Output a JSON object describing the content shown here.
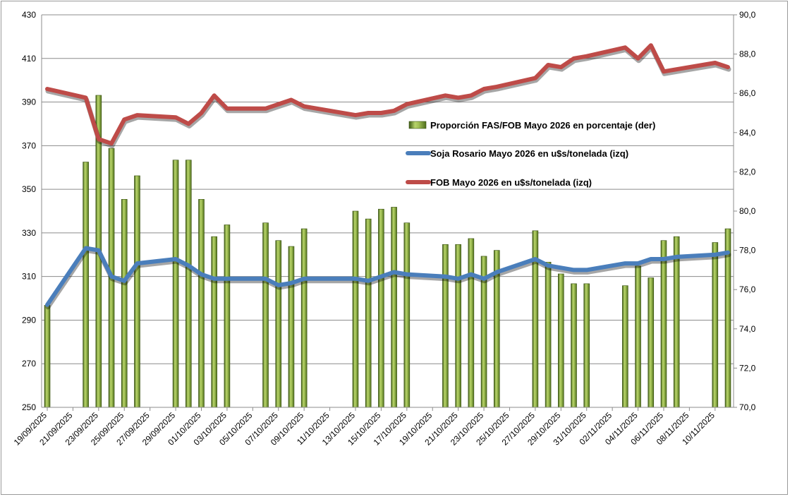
{
  "chart_data": {
    "type": "bar+line",
    "title": "",
    "xlabel": "",
    "ylabel_left": "",
    "ylabel_right": "",
    "y_left": {
      "min": 250,
      "max": 430,
      "ticks": [
        "250",
        "270",
        "290",
        "310",
        "330",
        "350",
        "370",
        "390",
        "410",
        "430"
      ]
    },
    "y_right": {
      "min": 70,
      "max": 90,
      "ticks": [
        "70,0",
        "72,0",
        "74,0",
        "76,0",
        "78,0",
        "80,0",
        "82,0",
        "84,0",
        "86,0",
        "88,0",
        "90,0"
      ]
    },
    "grid": "horizontal",
    "legend_position": "middle-right",
    "x_start": "2025-09-19",
    "x_end": "2025-11-11",
    "x_tick_labels": [
      "19/09/2025",
      "21/09/2025",
      "23/09/2025",
      "25/09/2025",
      "27/09/2025",
      "29/09/2025",
      "01/10/2025",
      "03/10/2025",
      "05/10/2025",
      "07/10/2025",
      "09/10/2025",
      "11/10/2025",
      "13/10/2025",
      "15/10/2025",
      "17/10/2025",
      "19/10/2025",
      "21/10/2025",
      "23/10/2025",
      "25/10/2025",
      "27/10/2025",
      "29/10/2025",
      "31/10/2025",
      "02/11/2025",
      "04/11/2025",
      "06/11/2025",
      "08/11/2025",
      "10/11/2025"
    ],
    "series": [
      {
        "name": "Proporción FAS/FOB Mayo 2026 en porcentaje (der)",
        "type": "bar",
        "axis": "right",
        "color": "#8fac3a",
        "x": [
          "2025-09-19",
          "2025-09-22",
          "2025-09-23",
          "2025-09-24",
          "2025-09-25",
          "2025-09-26",
          "2025-09-29",
          "2025-09-30",
          "2025-10-01",
          "2025-10-02",
          "2025-10-03",
          "2025-10-06",
          "2025-10-07",
          "2025-10-08",
          "2025-10-09",
          "2025-10-13",
          "2025-10-14",
          "2025-10-15",
          "2025-10-16",
          "2025-10-17",
          "2025-10-20",
          "2025-10-21",
          "2025-10-22",
          "2025-10-23",
          "2025-10-24",
          "2025-10-27",
          "2025-10-28",
          "2025-10-29",
          "2025-10-30",
          "2025-10-31",
          "2025-11-03",
          "2025-11-04",
          "2025-11-05",
          "2025-11-06",
          "2025-11-07",
          "2025-11-10",
          "2025-11-11"
        ],
        "values": [
          75.2,
          82.5,
          85.9,
          83.2,
          80.6,
          81.8,
          82.6,
          82.6,
          80.6,
          78.7,
          79.3,
          79.4,
          78.5,
          78.2,
          79.1,
          80.0,
          79.6,
          80.1,
          80.2,
          79.4,
          78.3,
          78.3,
          78.6,
          77.7,
          78.0,
          79.0,
          77.4,
          76.8,
          76.3,
          76.3,
          76.2,
          77.2,
          76.6,
          78.5,
          78.7,
          78.4,
          79.1
        ]
      },
      {
        "name": "Soja Rosario Mayo 2026 en u$s/tonelada (izq)",
        "type": "line",
        "axis": "left",
        "color": "#4a7ebb",
        "x": [
          "2025-09-19",
          "2025-09-22",
          "2025-09-23",
          "2025-09-24",
          "2025-09-25",
          "2025-09-26",
          "2025-09-29",
          "2025-09-30",
          "2025-10-01",
          "2025-10-02",
          "2025-10-03",
          "2025-10-06",
          "2025-10-07",
          "2025-10-08",
          "2025-10-09",
          "2025-10-13",
          "2025-10-14",
          "2025-10-15",
          "2025-10-16",
          "2025-10-17",
          "2025-10-20",
          "2025-10-21",
          "2025-10-22",
          "2025-10-23",
          "2025-10-24",
          "2025-10-27",
          "2025-10-28",
          "2025-10-29",
          "2025-10-30",
          "2025-10-31",
          "2025-11-03",
          "2025-11-04",
          "2025-11-05",
          "2025-11-06",
          "2025-11-07",
          "2025-11-10",
          "2025-11-11"
        ],
        "values": [
          297,
          323,
          322,
          310,
          308,
          316,
          318,
          315,
          311,
          309,
          309,
          309,
          306,
          307,
          309,
          309,
          308,
          310,
          312,
          311,
          310,
          309,
          311,
          309,
          312,
          318,
          315,
          314,
          313,
          313,
          316,
          316,
          318,
          318,
          319,
          320,
          321
        ]
      },
      {
        "name": "FOB Mayo 2026 en u$s/tonelada (izq)",
        "type": "line",
        "axis": "left",
        "color": "#be4b48",
        "x": [
          "2025-09-19",
          "2025-09-22",
          "2025-09-23",
          "2025-09-24",
          "2025-09-25",
          "2025-09-26",
          "2025-09-29",
          "2025-09-30",
          "2025-10-01",
          "2025-10-02",
          "2025-10-03",
          "2025-10-06",
          "2025-10-07",
          "2025-10-08",
          "2025-10-09",
          "2025-10-13",
          "2025-10-14",
          "2025-10-15",
          "2025-10-16",
          "2025-10-17",
          "2025-10-20",
          "2025-10-21",
          "2025-10-22",
          "2025-10-23",
          "2025-10-24",
          "2025-10-27",
          "2025-10-28",
          "2025-10-29",
          "2025-10-30",
          "2025-10-31",
          "2025-11-03",
          "2025-11-04",
          "2025-11-05",
          "2025-11-06",
          "2025-11-07",
          "2025-11-10",
          "2025-11-11"
        ],
        "values": [
          396,
          392,
          373,
          371,
          382,
          384,
          383,
          380,
          385,
          393,
          387,
          387,
          389,
          391,
          388,
          384,
          385,
          385,
          386,
          389,
          393,
          392,
          393,
          396,
          397,
          401,
          407,
          406,
          410,
          411,
          415,
          410,
          416,
          404,
          405,
          408,
          406
        ]
      }
    ]
  }
}
